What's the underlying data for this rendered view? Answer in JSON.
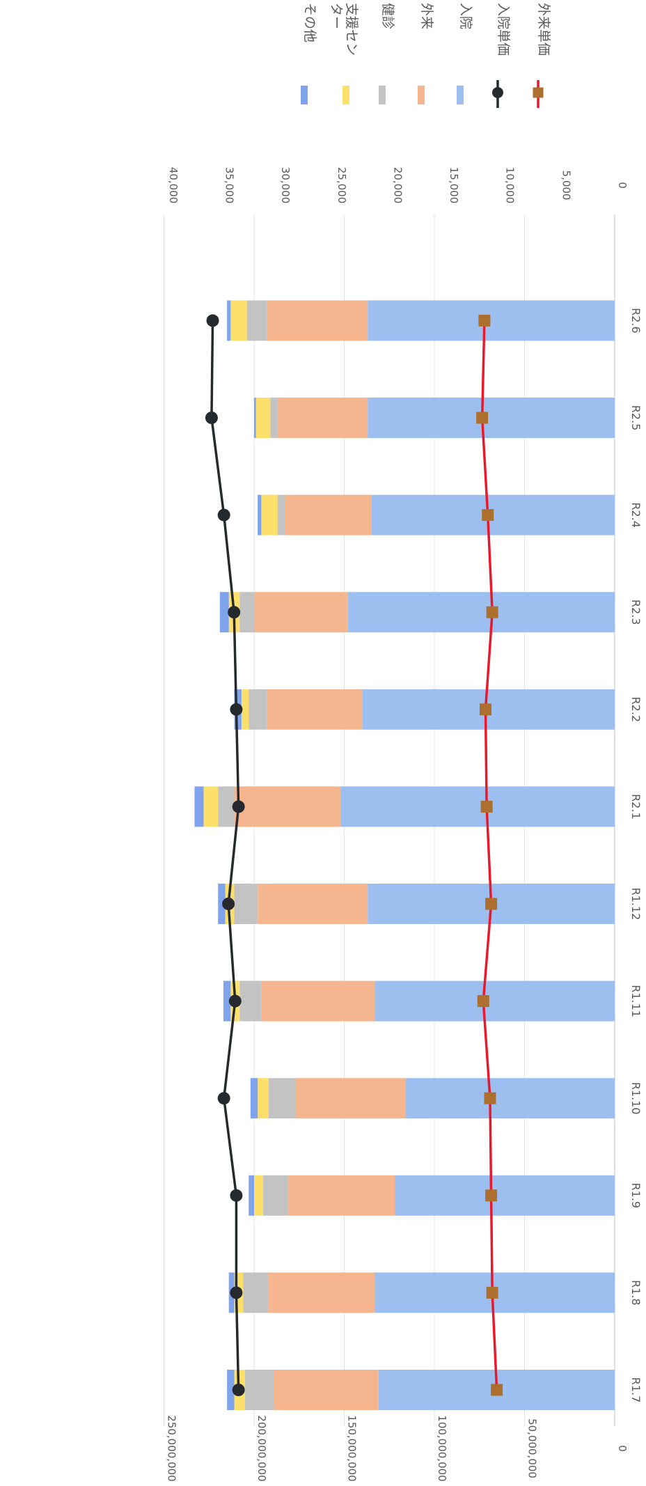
{
  "chart_data": {
    "type": "bar",
    "stacked": true,
    "orientation": "rotated-90-clockwise",
    "categories": [
      "R1.7",
      "R1.8",
      "R1.9",
      "R1.10",
      "R1.11",
      "R1.12",
      "R2.1",
      "R2.2",
      "R2.3",
      "R2.4",
      "R2.5",
      "R2.6"
    ],
    "series": [
      {
        "name": "入院",
        "color": "#9dbff0",
        "values": [
          131000000,
          133000000,
          122000000,
          116000000,
          133000000,
          137000000,
          152000000,
          140000000,
          148000000,
          135000000,
          137000000,
          137000000
        ]
      },
      {
        "name": "外来",
        "color": "#f5b58e",
        "values": [
          58000000,
          59000000,
          59000000,
          61000000,
          63000000,
          61000000,
          59000000,
          53000000,
          52000000,
          48000000,
          50000000,
          56000000
        ]
      },
      {
        "name": "健診",
        "color": "#c3c3c3",
        "values": [
          16000000,
          14000000,
          14000000,
          15000000,
          12000000,
          13000000,
          9000000,
          10000000,
          8000000,
          4000000,
          4000000,
          11000000
        ]
      },
      {
        "name": "支援センター",
        "color": "#fde06b",
        "values": [
          6000000,
          5000000,
          5000000,
          6000000,
          5000000,
          5000000,
          8000000,
          4000000,
          6000000,
          9000000,
          8000000,
          9000000
        ]
      },
      {
        "name": "その他",
        "color": "#7fa4ec",
        "values": [
          4000000,
          3000000,
          3000000,
          4000000,
          4000000,
          4000000,
          5000000,
          4000000,
          5000000,
          2000000,
          1000000,
          2000000
        ]
      }
    ],
    "line_series": [
      {
        "name": "入院単価",
        "color": "#262a2f",
        "marker": "circle",
        "values": [
          33500,
          33700,
          33700,
          34800,
          33800,
          34400,
          33500,
          33700,
          33900,
          34800,
          35900,
          35800
        ]
      },
      {
        "name": "外来単価",
        "color": "#e8192c",
        "marker": "square",
        "marker_color": "#ac6f2d",
        "values": [
          10500,
          10900,
          11000,
          11100,
          11700,
          11000,
          11400,
          11500,
          10900,
          11300,
          11800,
          11600
        ]
      }
    ],
    "primary_axis": {
      "min": 0,
      "max": 250000000,
      "ticks": [
        "0",
        "50,000,000",
        "100,000,000",
        "150,000,000",
        "200,000,000",
        "250,000,000"
      ]
    },
    "secondary_axis": {
      "min": 0,
      "max": 40000,
      "ticks": [
        "0",
        "5,000",
        "10,000",
        "15,000",
        "20,000",
        "25,000",
        "30,000",
        "35,000",
        "40,000"
      ]
    },
    "legend": [
      {
        "label": "その他",
        "kind": "box",
        "color": "#7fa4ec"
      },
      {
        "label": "支援セン\nター",
        "kind": "box",
        "color": "#fde06b"
      },
      {
        "label": "健診",
        "kind": "box",
        "color": "#c3c3c3"
      },
      {
        "label": "外来",
        "kind": "box",
        "color": "#f5b58e"
      },
      {
        "label": "入院",
        "kind": "box",
        "color": "#9dbff0"
      },
      {
        "label": "入院単価",
        "kind": "line-circle",
        "color": "#262a2f"
      },
      {
        "label": "外来単価",
        "kind": "line-square",
        "color": "#e8192c",
        "marker_color": "#ac6f2d"
      }
    ],
    "legend_position": "top-right",
    "grid": true
  }
}
